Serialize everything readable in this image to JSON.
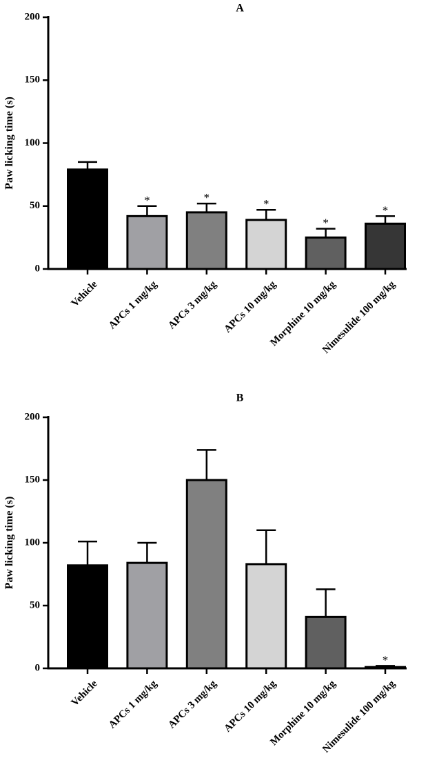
{
  "chart_data": [
    {
      "type": "bar",
      "title": "A",
      "xlabel": "",
      "ylabel": "Paw licking time (s)",
      "ylim": [
        0,
        200
      ],
      "yticks": [
        0,
        50,
        100,
        150,
        200
      ],
      "grid": false,
      "categories": [
        "Vehicle",
        "APCs 1 mg/kg",
        "APCs 3 mg/kg",
        "APCs 10 mg/kg",
        "Morphine 10 mg/kg",
        "Nimesulide 100 mg/kg"
      ],
      "values": [
        79,
        42,
        45,
        39,
        25,
        36
      ],
      "errors": [
        6,
        8,
        7,
        8,
        7,
        6
      ],
      "colors": [
        "#000000",
        "#a0a0a4",
        "#808080",
        "#d4d4d4",
        "#606060",
        "#363636"
      ],
      "significance": [
        "",
        "*",
        "*",
        "*",
        "*",
        "*"
      ]
    },
    {
      "type": "bar",
      "title": "B",
      "xlabel": "",
      "ylabel": "Paw licking time (s)",
      "ylim": [
        0,
        200
      ],
      "yticks": [
        0,
        50,
        100,
        150,
        200
      ],
      "grid": false,
      "categories": [
        "Vehicle",
        "APCs 1 mg/kg",
        "APCs 3 mg/kg",
        "APCs 10 mg/kg",
        "Morphine 10 mg/kg",
        "Nimesulide 100 mg/kg"
      ],
      "values": [
        82,
        84,
        150,
        83,
        41,
        1
      ],
      "errors": [
        19,
        16,
        24,
        27,
        22,
        1
      ],
      "colors": [
        "#000000",
        "#a0a0a4",
        "#808080",
        "#d4d4d4",
        "#606060",
        "#363636"
      ],
      "significance": [
        "",
        "",
        "",
        "",
        "",
        "*"
      ]
    }
  ]
}
